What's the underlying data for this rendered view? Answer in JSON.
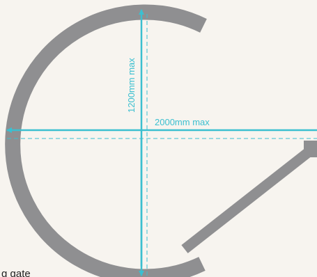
{
  "diagram": {
    "height_label": "1200mm max",
    "width_label": "2000mm max",
    "caption": "g gate"
  },
  "colors": {
    "background": "#f7f4ef",
    "frame": "#8f8f91",
    "dimension": "#3bbfd0",
    "caption": "#222222"
  }
}
